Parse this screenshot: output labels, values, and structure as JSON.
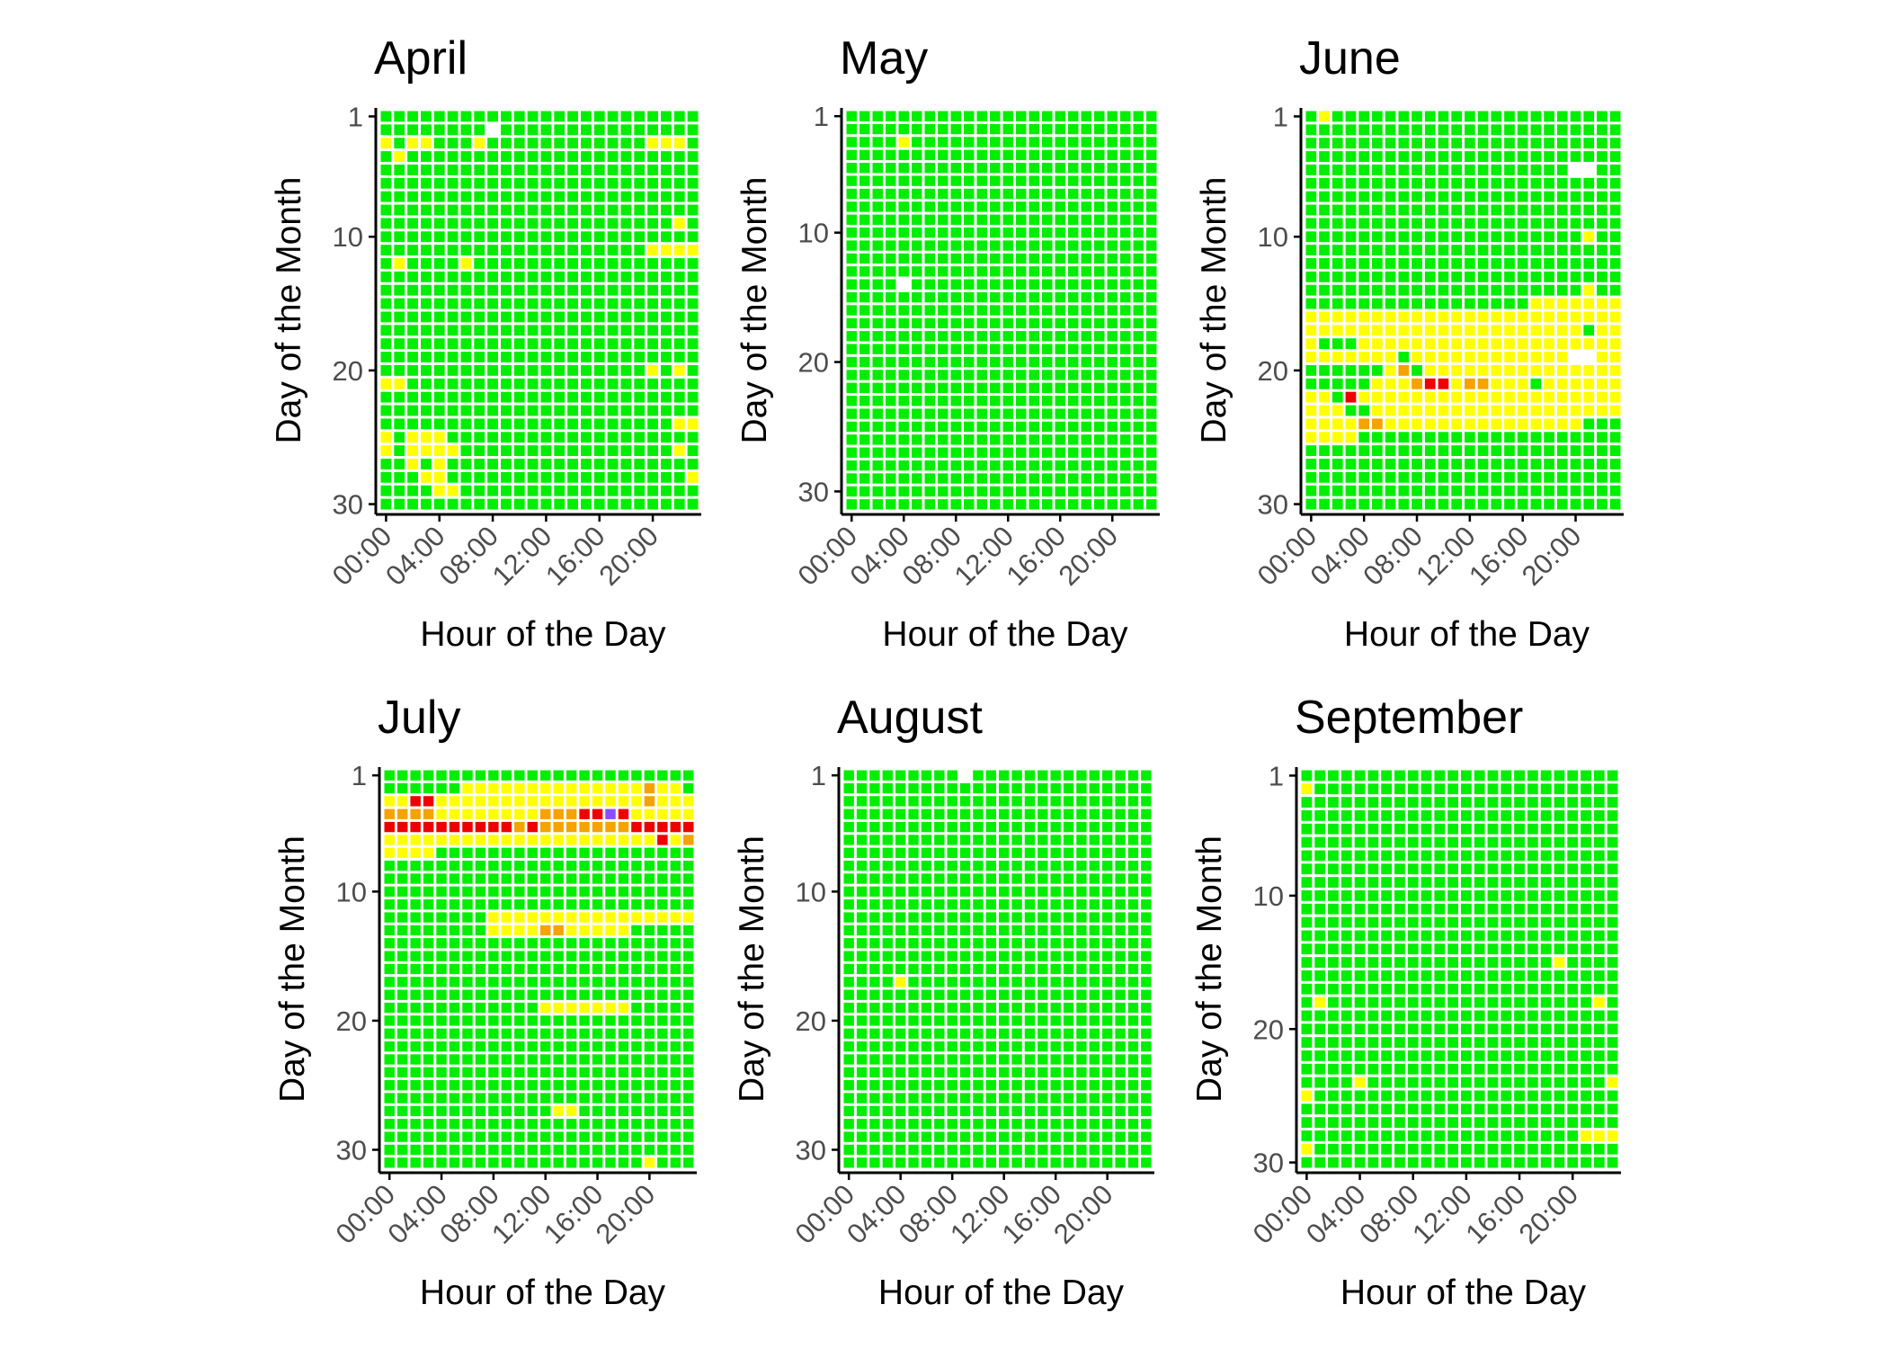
{
  "chart_data": [
    {
      "type": "heatmap",
      "title": "April",
      "xlabel": "Hour of the Day",
      "ylabel": "Day of the Month",
      "days": 30,
      "x_ticks": [
        "00:00",
        "04:00",
        "08:00",
        "12:00",
        "16:00",
        "20:00"
      ],
      "y_ticks": [
        "1",
        "10",
        "20",
        "30"
      ],
      "missing": [
        [
          2,
          8
        ]
      ],
      "cells": [
        {
          "level": "yellow",
          "day": 3,
          "hours": [
            0,
            2,
            3,
            7,
            20,
            21,
            22
          ]
        },
        {
          "level": "yellow",
          "day": 4,
          "hours": [
            1
          ]
        },
        {
          "level": "yellow",
          "day": 9,
          "hours": [
            22
          ]
        },
        {
          "level": "yellow",
          "day": 11,
          "hours": [
            20,
            21,
            22,
            23
          ]
        },
        {
          "level": "yellow",
          "day": 12,
          "hours": [
            1,
            6
          ]
        },
        {
          "level": "yellow",
          "day": 20,
          "hours": [
            20,
            22
          ]
        },
        {
          "level": "yellow",
          "day": 21,
          "hours": [
            0,
            1
          ]
        },
        {
          "level": "yellow",
          "day": 24,
          "hours": [
            22,
            23
          ]
        },
        {
          "level": "yellow",
          "day": 25,
          "hours": [
            0,
            2,
            3,
            4
          ]
        },
        {
          "level": "yellow",
          "day": 26,
          "hours": [
            0,
            2,
            3,
            4,
            5,
            22
          ]
        },
        {
          "level": "yellow",
          "day": 27,
          "hours": [
            2,
            4
          ]
        },
        {
          "level": "yellow",
          "day": 28,
          "hours": [
            3,
            4,
            23
          ]
        },
        {
          "level": "yellow",
          "day": 29,
          "hours": [
            4,
            5
          ]
        }
      ]
    },
    {
      "type": "heatmap",
      "title": "May",
      "xlabel": "Hour of the Day",
      "ylabel": "Day of the Month",
      "days": 31,
      "x_ticks": [
        "00:00",
        "04:00",
        "08:00",
        "12:00",
        "16:00",
        "20:00"
      ],
      "y_ticks": [
        "1",
        "10",
        "20",
        "30"
      ],
      "missing": [
        [
          14,
          4
        ]
      ],
      "cells": [
        {
          "level": "yellow",
          "day": 3,
          "hours": [
            4
          ]
        }
      ]
    },
    {
      "type": "heatmap",
      "title": "June",
      "xlabel": "Hour of the Day",
      "ylabel": "Day of the Month",
      "days": 30,
      "x_ticks": [
        "00:00",
        "04:00",
        "08:00",
        "12:00",
        "16:00",
        "20:00"
      ],
      "y_ticks": [
        "1",
        "10",
        "20",
        "30"
      ],
      "missing": [
        [
          5,
          20
        ],
        [
          5,
          21
        ],
        [
          19,
          20
        ],
        [
          19,
          21
        ]
      ],
      "cells": [
        {
          "level": "yellow",
          "day": 1,
          "hours": [
            1
          ]
        },
        {
          "level": "yellow",
          "day": 10,
          "hours": [
            21
          ]
        },
        {
          "level": "yellow",
          "day": 14,
          "hours": [
            21
          ]
        },
        {
          "level": "yellow",
          "day": 15,
          "hours": [
            17,
            18,
            19,
            20,
            21,
            22,
            23
          ]
        },
        {
          "level": "yellow",
          "day": 16,
          "hours": [
            0,
            1,
            2,
            3,
            4,
            5,
            6,
            7,
            8,
            9,
            10,
            11,
            12,
            13,
            14,
            15,
            16,
            17,
            18,
            19,
            20,
            21,
            22,
            23
          ]
        },
        {
          "level": "yellow",
          "day": 17,
          "hours": [
            0,
            1,
            2,
            3,
            4,
            5,
            6,
            7,
            8,
            9,
            10,
            11,
            12,
            13,
            14,
            15,
            16,
            17,
            18,
            19,
            20,
            22,
            23
          ]
        },
        {
          "level": "yellow",
          "day": 18,
          "hours": [
            0,
            4,
            5,
            6,
            7,
            8,
            9,
            10,
            11,
            12,
            13,
            14,
            15,
            16,
            17,
            18,
            19,
            20,
            21,
            22,
            23
          ]
        },
        {
          "level": "yellow",
          "day": 19,
          "hours": [
            0,
            1,
            2,
            3,
            4,
            5,
            6,
            8,
            9,
            10,
            11,
            12,
            13,
            14,
            15,
            16,
            17,
            18,
            19,
            22,
            23
          ]
        },
        {
          "level": "yellow",
          "day": 20,
          "hours": [
            6,
            9,
            10,
            11,
            12,
            13,
            14,
            15,
            16,
            17,
            18,
            19,
            20,
            21,
            22,
            23
          ]
        },
        {
          "level": "orange",
          "day": 20,
          "hours": [
            7
          ]
        },
        {
          "level": "yellow",
          "day": 21,
          "hours": [
            5,
            6,
            7,
            11,
            14,
            15,
            16,
            18,
            19,
            20,
            21,
            22,
            23
          ]
        },
        {
          "level": "orange",
          "day": 21,
          "hours": [
            8,
            12,
            13
          ]
        },
        {
          "level": "red",
          "day": 21,
          "hours": [
            9,
            10
          ]
        },
        {
          "level": "yellow",
          "day": 22,
          "hours": [
            0,
            1,
            4,
            5,
            6,
            7,
            8,
            9,
            10,
            11,
            12,
            13,
            14,
            15,
            16,
            17,
            18,
            19,
            20,
            21,
            22,
            23
          ]
        },
        {
          "level": "red",
          "day": 22,
          "hours": [
            3
          ]
        },
        {
          "level": "yellow",
          "day": 23,
          "hours": [
            0,
            1,
            2,
            5,
            6,
            7,
            8,
            9,
            10,
            11,
            12,
            13,
            14,
            15,
            16,
            17,
            18,
            19,
            20,
            21,
            22,
            23
          ]
        },
        {
          "level": "yellow",
          "day": 24,
          "hours": [
            0,
            1,
            2,
            3,
            6,
            7,
            8,
            9,
            10,
            11,
            12,
            13,
            14,
            15,
            16,
            17,
            18,
            19,
            20
          ]
        },
        {
          "level": "orange",
          "day": 24,
          "hours": [
            4,
            5
          ]
        },
        {
          "level": "yellow",
          "day": 25,
          "hours": [
            0,
            1,
            2,
            3
          ]
        }
      ]
    },
    {
      "type": "heatmap",
      "title": "July",
      "xlabel": "Hour of the Day",
      "ylabel": "Day of the Month",
      "days": 31,
      "x_ticks": [
        "00:00",
        "04:00",
        "08:00",
        "12:00",
        "16:00",
        "20:00"
      ],
      "y_ticks": [
        "1",
        "10",
        "20",
        "30"
      ],
      "missing": [],
      "cells": [
        {
          "level": "yellow",
          "day": 2,
          "hours": [
            6,
            7,
            8,
            9,
            10,
            11,
            12,
            13,
            14,
            15,
            16,
            17,
            18,
            19,
            20,
            21,
            22
          ]
        },
        {
          "level": "orange",
          "day": 2,
          "hours": [
            20
          ]
        },
        {
          "level": "yellow",
          "day": 3,
          "hours": [
            0,
            1,
            4,
            5,
            6,
            7,
            8,
            9,
            10,
            11,
            12,
            13,
            14,
            15,
            16,
            17,
            18,
            19,
            21,
            22,
            23
          ]
        },
        {
          "level": "red",
          "day": 3,
          "hours": [
            2,
            3
          ]
        },
        {
          "level": "orange",
          "day": 3,
          "hours": [
            20
          ]
        },
        {
          "level": "orange",
          "day": 4,
          "hours": [
            0,
            1,
            2,
            3,
            12,
            13,
            14
          ]
        },
        {
          "level": "yellow",
          "day": 4,
          "hours": [
            4,
            5,
            6,
            7,
            8,
            9,
            10,
            11,
            19,
            20,
            21,
            22,
            23
          ]
        },
        {
          "level": "red",
          "day": 4,
          "hours": [
            15,
            16,
            18
          ]
        },
        {
          "level": "blue",
          "day": 4,
          "hours": [
            17
          ]
        },
        {
          "level": "red",
          "day": 5,
          "hours": [
            0,
            1,
            2,
            3,
            4,
            5,
            6,
            7,
            8,
            9,
            11,
            19,
            20,
            21,
            22,
            23
          ]
        },
        {
          "level": "orange",
          "day": 5,
          "hours": [
            10,
            12,
            13,
            14,
            15,
            16,
            17,
            18
          ]
        },
        {
          "level": "yellow",
          "day": 6,
          "hours": [
            0,
            1,
            2,
            3,
            4,
            5,
            6,
            7,
            8,
            9,
            10,
            11,
            12,
            13,
            14,
            15,
            16,
            17,
            18,
            19,
            20,
            22
          ]
        },
        {
          "level": "red",
          "day": 6,
          "hours": [
            21
          ]
        },
        {
          "level": "orange",
          "day": 6,
          "hours": [
            23
          ]
        },
        {
          "level": "yellow",
          "day": 7,
          "hours": [
            0,
            1,
            2,
            3
          ]
        },
        {
          "level": "yellow",
          "day": 12,
          "hours": [
            8,
            9,
            10,
            11,
            12,
            13,
            14,
            15,
            16,
            17,
            18,
            19,
            20,
            21,
            22,
            23
          ]
        },
        {
          "level": "orange",
          "day": 13,
          "hours": [
            12,
            13
          ]
        },
        {
          "level": "yellow",
          "day": 13,
          "hours": [
            8,
            9,
            10,
            11,
            14,
            15,
            16,
            17,
            18
          ]
        },
        {
          "level": "yellow",
          "day": 19,
          "hours": [
            12,
            13,
            14,
            15,
            16,
            17,
            18
          ]
        },
        {
          "level": "yellow",
          "day": 27,
          "hours": [
            13,
            14
          ]
        },
        {
          "level": "yellow",
          "day": 31,
          "hours": [
            20
          ]
        }
      ]
    },
    {
      "type": "heatmap",
      "title": "August",
      "xlabel": "Hour of the Day",
      "ylabel": "Day of the Month",
      "days": 31,
      "x_ticks": [
        "00:00",
        "04:00",
        "08:00",
        "12:00",
        "16:00",
        "20:00"
      ],
      "y_ticks": [
        "1",
        "10",
        "20",
        "30"
      ],
      "missing": [
        [
          1,
          9
        ]
      ],
      "cells": [
        {
          "level": "yellow",
          "day": 17,
          "hours": [
            4
          ]
        }
      ]
    },
    {
      "type": "heatmap",
      "title": "September",
      "xlabel": "Hour of the Day",
      "ylabel": "Day of the Month",
      "days": 30,
      "x_ticks": [
        "00:00",
        "04:00",
        "08:00",
        "12:00",
        "16:00",
        "20:00"
      ],
      "y_ticks": [
        "1",
        "10",
        "20",
        "30"
      ],
      "missing": [],
      "cells": [
        {
          "level": "yellow",
          "day": 2,
          "hours": [
            0
          ]
        },
        {
          "level": "yellow",
          "day": 15,
          "hours": [
            19
          ]
        },
        {
          "level": "yellow",
          "day": 18,
          "hours": [
            1,
            22
          ]
        },
        {
          "level": "yellow",
          "day": 24,
          "hours": [
            4,
            23
          ]
        },
        {
          "level": "yellow",
          "day": 25,
          "hours": [
            0
          ]
        },
        {
          "level": "yellow",
          "day": 28,
          "hours": [
            21,
            22,
            23
          ]
        },
        {
          "level": "yellow",
          "day": 29,
          "hours": [
            0
          ]
        }
      ]
    }
  ],
  "colors": {
    "green": "#00ee00",
    "yellow": "#ffff00",
    "orange": "#f4a300",
    "red": "#ee0000",
    "blue": "#8a4dff",
    "missing": "#ffffff",
    "axis": "#000000",
    "tick_text": "#4d4d4d"
  }
}
